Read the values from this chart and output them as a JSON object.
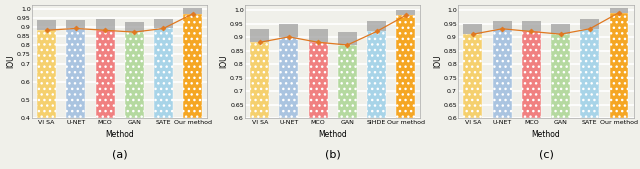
{
  "subplots": [
    {
      "title": "(a)",
      "ylabel": "IOU",
      "xlabel": "Method",
      "categories": [
        "VI SA",
        "U-NET",
        "MCO",
        "GAN",
        "SATE",
        "Our method"
      ],
      "bar_values": [
        0.882,
        0.892,
        0.882,
        0.872,
        0.892,
        0.972
      ],
      "bar_std": [
        0.055,
        0.048,
        0.06,
        0.058,
        0.05,
        0.03
      ],
      "line_values": [
        0.882,
        0.892,
        0.882,
        0.872,
        0.892,
        0.972
      ],
      "ylim": [
        0.4,
        1.02
      ],
      "yticks": [
        0.4,
        0.5,
        0.6,
        0.7,
        0.75,
        0.8,
        0.85,
        0.9,
        0.95,
        1.0
      ]
    },
    {
      "title": "(b)",
      "ylabel": "IOU",
      "xlabel": "Method",
      "categories": [
        "VI SA",
        "U-NET",
        "MCO",
        "GAN",
        "SIHDE",
        "Our method"
      ],
      "bar_values": [
        0.882,
        0.902,
        0.882,
        0.872,
        0.922,
        0.982
      ],
      "bar_std": [
        0.048,
        0.048,
        0.048,
        0.048,
        0.038,
        0.018
      ],
      "line_values": [
        0.882,
        0.902,
        0.882,
        0.872,
        0.922,
        0.982
      ],
      "ylim": [
        0.6,
        1.02
      ],
      "yticks": [
        0.6,
        0.65,
        0.7,
        0.75,
        0.8,
        0.85,
        0.9,
        0.95,
        1.0
      ]
    },
    {
      "title": "(c)",
      "ylabel": "IOU",
      "xlabel": "Method",
      "categories": [
        "VI SA",
        "U-NET",
        "MCO",
        "GAN",
        "SATE",
        "Our method"
      ],
      "bar_values": [
        0.912,
        0.932,
        0.922,
        0.912,
        0.932,
        0.992
      ],
      "bar_std": [
        0.038,
        0.03,
        0.038,
        0.038,
        0.038,
        0.018
      ],
      "line_values": [
        0.912,
        0.932,
        0.922,
        0.912,
        0.932,
        0.992
      ],
      "ylim": [
        0.6,
        1.02
      ],
      "yticks": [
        0.6,
        0.65,
        0.7,
        0.75,
        0.8,
        0.85,
        0.9,
        0.95,
        1.0
      ]
    }
  ],
  "bar_colors": [
    "#f5d06e",
    "#aac4e0",
    "#f08080",
    "#b5d9a0",
    "#a8d4e8",
    "#f5a623"
  ],
  "gray_color": "#a0a0a0",
  "errorbar_color": "#555555",
  "line_color": "#e07820",
  "line_marker": "D",
  "line_marker_color": "#e07820",
  "background_color": "#f0f0ea",
  "grid_color": "#ffffff",
  "title_fontsize": 8,
  "axis_fontsize": 5.5,
  "tick_fontsize": 4.5
}
